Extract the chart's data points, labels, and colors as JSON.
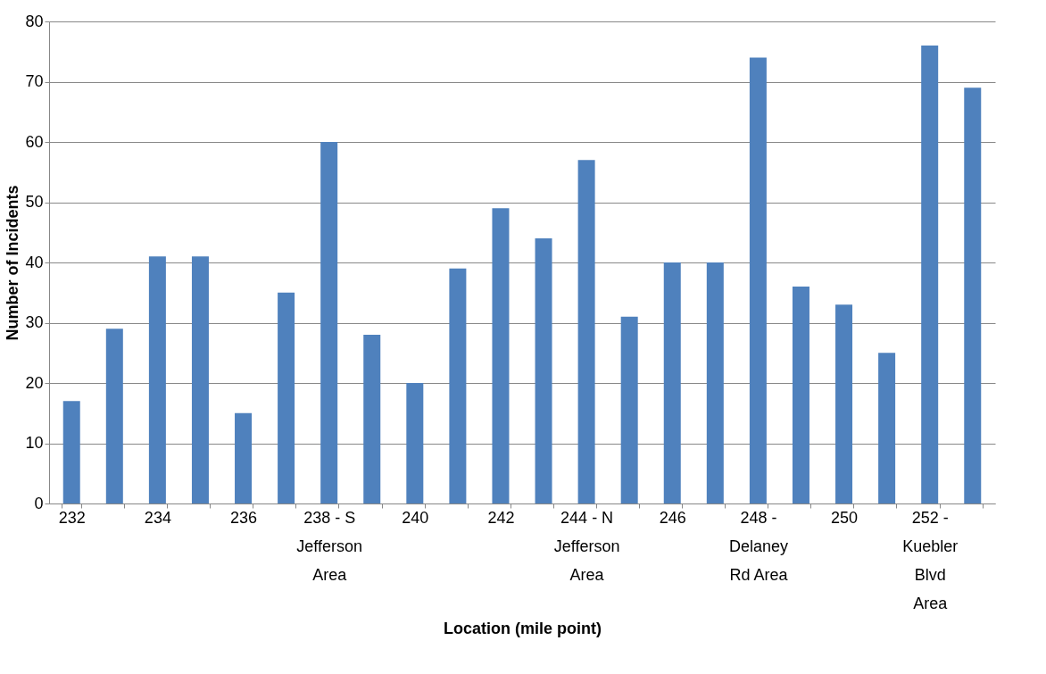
{
  "chart_data": {
    "type": "bar",
    "xlabel": "Location (mile point)",
    "ylabel": "Number of Incidents",
    "categories": [
      "232",
      null,
      "234",
      null,
      "236",
      null,
      "238 - S Jefferson Area",
      null,
      "240",
      null,
      "242",
      null,
      "244 - N Jefferson Area",
      null,
      "246",
      null,
      "248 - Delaney Rd Area",
      null,
      "250",
      null,
      "252 - Kuebler Blvd Area",
      null
    ],
    "values": [
      17,
      29,
      41,
      41,
      15,
      35,
      60,
      28,
      20,
      39,
      49,
      44,
      57,
      31,
      40,
      40,
      74,
      36,
      33,
      25,
      76,
      69
    ],
    "color": "#4f81bd",
    "ylim": [
      0,
      80
    ],
    "yticks": [
      0,
      10,
      20,
      30,
      40,
      50,
      60,
      70,
      80
    ],
    "grid": "y"
  }
}
